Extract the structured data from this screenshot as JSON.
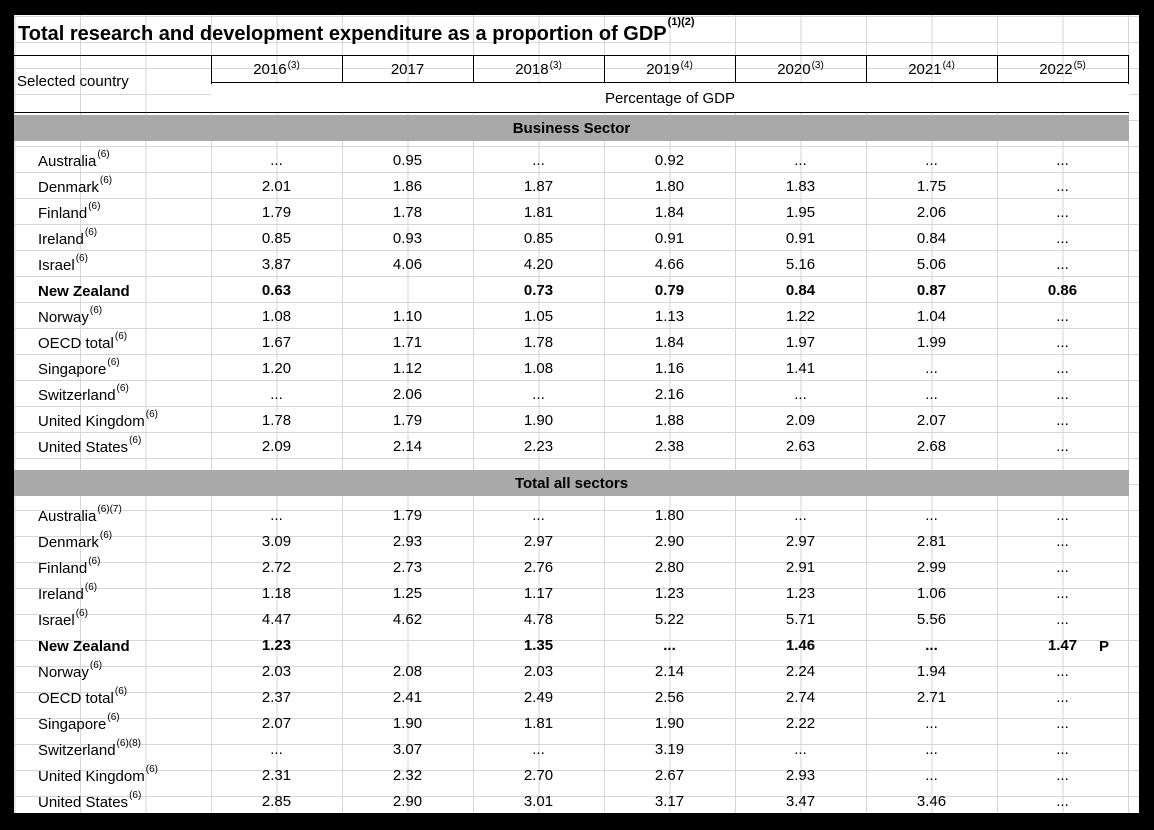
{
  "title": "Total research and development expenditure as a proportion of GDP",
  "title_notes": "(1)(2)",
  "header": {
    "country_label": "Selected country",
    "unit": "Percentage of GDP",
    "years": [
      {
        "label": "2016",
        "note": "(3)"
      },
      {
        "label": "2017",
        "note": ""
      },
      {
        "label": "2018",
        "note": "(3)"
      },
      {
        "label": "2019",
        "note": "(4)"
      },
      {
        "label": "2020",
        "note": "(3)"
      },
      {
        "label": "2021",
        "note": "(4)"
      },
      {
        "label": "2022",
        "note": "(5)"
      }
    ]
  },
  "sections": [
    {
      "title": "Business Sector",
      "rows": [
        {
          "country": "Australia",
          "note": "(6)",
          "values": [
            "...",
            "0.95",
            "...",
            "0.92",
            "...",
            "...",
            "..."
          ]
        },
        {
          "country": "Denmark",
          "note": "(6)",
          "values": [
            "2.01",
            "1.86",
            "1.87",
            "1.80",
            "1.83",
            "1.75",
            "..."
          ]
        },
        {
          "country": "Finland",
          "note": "(6)",
          "values": [
            "1.79",
            "1.78",
            "1.81",
            "1.84",
            "1.95",
            "2.06",
            "..."
          ]
        },
        {
          "country": "Ireland",
          "note": "(6)",
          "values": [
            "0.85",
            "0.93",
            "0.85",
            "0.91",
            "0.91",
            "0.84",
            "..."
          ]
        },
        {
          "country": "Israel",
          "note": "(6)",
          "values": [
            "3.87",
            "4.06",
            "4.20",
            "4.66",
            "5.16",
            "5.06",
            "..."
          ]
        },
        {
          "country": "New Zealand",
          "note": "",
          "bold": true,
          "values": [
            "0.63",
            "",
            "0.73",
            "0.79",
            "0.84",
            "0.87",
            "0.86"
          ]
        },
        {
          "country": "Norway",
          "note": "(6)",
          "values": [
            "1.08",
            "1.10",
            "1.05",
            "1.13",
            "1.22",
            "1.04",
            "..."
          ]
        },
        {
          "country": "OECD total",
          "note": "(6)",
          "values": [
            "1.67",
            "1.71",
            "1.78",
            "1.84",
            "1.97",
            "1.99",
            "..."
          ]
        },
        {
          "country": "Singapore",
          "note": "(6)",
          "values": [
            "1.20",
            "1.12",
            "1.08",
            "1.16",
            "1.41",
            "...",
            "..."
          ]
        },
        {
          "country": "Switzerland",
          "note": "(6)",
          "values": [
            "...",
            "2.06",
            "...",
            "2.16",
            "...",
            "...",
            "..."
          ]
        },
        {
          "country": "United Kingdom",
          "note": "(6)",
          "values": [
            "1.78",
            "1.79",
            "1.90",
            "1.88",
            "2.09",
            "2.07",
            "..."
          ]
        },
        {
          "country": "United States",
          "note": "(6)",
          "values": [
            "2.09",
            "2.14",
            "2.23",
            "2.38",
            "2.63",
            "2.68",
            "..."
          ]
        }
      ]
    },
    {
      "title": "Total all sectors",
      "rows": [
        {
          "country": "Australia",
          "note": "(6)(7)",
          "values": [
            "...",
            "1.79",
            "...",
            "1.80",
            "...",
            "...",
            "..."
          ]
        },
        {
          "country": "Denmark",
          "note": "(6)",
          "values": [
            "3.09",
            "2.93",
            "2.97",
            "2.90",
            "2.97",
            "2.81",
            "..."
          ]
        },
        {
          "country": "Finland",
          "note": "(6)",
          "values": [
            "2.72",
            "2.73",
            "2.76",
            "2.80",
            "2.91",
            "2.99",
            "..."
          ]
        },
        {
          "country": "Ireland",
          "note": "(6)",
          "values": [
            "1.18",
            "1.25",
            "1.17",
            "1.23",
            "1.23",
            "1.06",
            "..."
          ]
        },
        {
          "country": "Israel",
          "note": "(6)",
          "values": [
            "4.47",
            "4.62",
            "4.78",
            "5.22",
            "5.71",
            "5.56",
            "..."
          ]
        },
        {
          "country": "New Zealand",
          "note": "",
          "bold": true,
          "values": [
            "1.23",
            "",
            "1.35",
            "...",
            "1.46",
            "...",
            "1.47"
          ],
          "flag": "P"
        },
        {
          "country": "Norway",
          "note": "(6)",
          "values": [
            "2.03",
            "2.08",
            "2.03",
            "2.14",
            "2.24",
            "1.94",
            "..."
          ]
        },
        {
          "country": "OECD total",
          "note": "(6)",
          "values": [
            "2.37",
            "2.41",
            "2.49",
            "2.56",
            "2.74",
            "2.71",
            "..."
          ]
        },
        {
          "country": "Singapore",
          "note": "(6)",
          "values": [
            "2.07",
            "1.90",
            "1.81",
            "1.90",
            "2.22",
            "...",
            "..."
          ]
        },
        {
          "country": "Switzerland",
          "note": "(6)(8)",
          "values": [
            "...",
            "3.07",
            "...",
            "3.19",
            "...",
            "...",
            "..."
          ]
        },
        {
          "country": "United Kingdom",
          "note": "(6)",
          "values": [
            "2.31",
            "2.32",
            "2.70",
            "2.67",
            "2.93",
            "...",
            "..."
          ]
        },
        {
          "country": "United States",
          "note": "(6)",
          "values": [
            "2.85",
            "2.90",
            "3.01",
            "3.17",
            "3.47",
            "3.46",
            "..."
          ]
        }
      ]
    }
  ]
}
